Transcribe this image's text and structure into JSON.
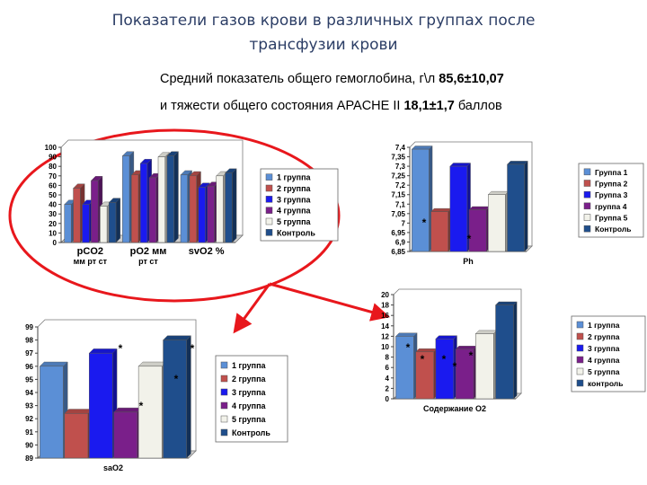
{
  "slide": {
    "title_line1": "Показатели газов крови в различных группах после",
    "title_line2": "трансфузии крови",
    "subtitle1_text": "Средний показатель общего гемоглобина, г\\л ",
    "subtitle1_value": "85,6±10,07",
    "subtitle2_text": "и тяжести общего состояния APACHE II ",
    "subtitle2_value": "18,1±1,7",
    "subtitle2_unit": " баллов",
    "circle_color": "#e8171c",
    "arrow_color": "#e8171c"
  },
  "chart_data": [
    {
      "type": "bar",
      "categories": [
        "pCO2 мм рт ст",
        "pO2 мм рт ст",
        "svO2 %"
      ],
      "category_lines": [
        [
          "pCO2",
          "мм рт ст"
        ],
        [
          "pO2 мм",
          "рт ст"
        ],
        [
          "svO2 %"
        ]
      ],
      "series": [
        {
          "name": "1 группа",
          "color": "#5b8fd6",
          "values": [
            40,
            91,
            71
          ]
        },
        {
          "name": "2 группа",
          "color": "#c0504d",
          "values": [
            57,
            71,
            70
          ]
        },
        {
          "name": "3 группа",
          "color": "#1a1aef",
          "values": [
            40,
            83,
            58
          ]
        },
        {
          "name": "4 группа",
          "color": "#7a1f8a",
          "values": [
            65,
            68,
            59
          ]
        },
        {
          "name": "5 группа",
          "color": "#f2f2ea",
          "values": [
            38,
            90,
            70
          ]
        },
        {
          "name": "Контроль",
          "color": "#1f4e8c",
          "values": [
            42,
            91,
            73
          ]
        }
      ],
      "yticks": [
        "100",
        "90",
        "80",
        "70",
        "60",
        "50",
        "40",
        "30",
        "20",
        "10",
        "0"
      ],
      "ylim": [
        0,
        100
      ],
      "legend": "right",
      "asterisks": []
    },
    {
      "type": "bar",
      "categories": [
        "Ph"
      ],
      "series": [
        {
          "name": "Группа 1",
          "color": "#5b8fd6",
          "values": [
            7.39
          ]
        },
        {
          "name": "Группа 2",
          "color": "#c0504d",
          "values": [
            7.06
          ]
        },
        {
          "name": "Группа 3",
          "color": "#1a1aef",
          "values": [
            7.3
          ]
        },
        {
          "name": "группа 4",
          "color": "#7a1f8a",
          "values": [
            7.07
          ]
        },
        {
          "name": "Группа 5",
          "color": "#f2f2ea",
          "values": [
            7.15
          ]
        },
        {
          "name": "Контроль",
          "color": "#1f4e8c",
          "values": [
            7.31
          ]
        }
      ],
      "yticks": [
        "7,4",
        "7,35",
        "7,3",
        "7,25",
        "7,2",
        "7,15",
        "7,1",
        "7,05",
        "7",
        "6,95",
        "6,9",
        "6,85"
      ],
      "ylim": [
        6.85,
        7.4
      ],
      "legend": "right",
      "asterisks": [
        "*",
        "*",
        "*"
      ]
    },
    {
      "type": "bar",
      "categories": [
        "saO2"
      ],
      "series": [
        {
          "name": "1 группа",
          "color": "#5b8fd6",
          "values": [
            96
          ]
        },
        {
          "name": "2 группа",
          "color": "#c0504d",
          "values": [
            92.4
          ]
        },
        {
          "name": "3 группа",
          "color": "#1a1aef",
          "values": [
            97
          ]
        },
        {
          "name": "4 группа",
          "color": "#7a1f8a",
          "values": [
            92.5
          ]
        },
        {
          "name": "5 группа",
          "color": "#f2f2ea",
          "values": [
            96
          ]
        },
        {
          "name": "Контроль",
          "color": "#1f4e8c",
          "values": [
            98
          ]
        }
      ],
      "yticks": [
        "99",
        "98",
        "97",
        "96",
        "95",
        "94",
        "93",
        "92",
        "91",
        "90",
        "89"
      ],
      "ylim": [
        89,
        99
      ],
      "legend": "right",
      "asterisks": [
        "*",
        "*",
        "*",
        "*"
      ]
    },
    {
      "type": "bar",
      "categories": [
        "Содержание О2"
      ],
      "series": [
        {
          "name": "1 группа",
          "color": "#5b8fd6",
          "values": [
            12
          ]
        },
        {
          "name": "2 группа",
          "color": "#c0504d",
          "values": [
            9
          ]
        },
        {
          "name": "3 группа",
          "color": "#1a1aef",
          "values": [
            11.5
          ]
        },
        {
          "name": "4 группа",
          "color": "#7a1f8a",
          "values": [
            9.5
          ]
        },
        {
          "name": "5 группа",
          "color": "#f2f2ea",
          "values": [
            12.5
          ]
        },
        {
          "name": "контроль",
          "color": "#1f4e8c",
          "values": [
            18
          ]
        }
      ],
      "yticks": [
        "20",
        "18",
        "16",
        "14",
        "12",
        "10",
        "8",
        "6",
        "4",
        "2",
        "0"
      ],
      "ylim": [
        0,
        20
      ],
      "legend": "right",
      "asterisks": [
        "*",
        "*",
        "*",
        "*",
        "*"
      ]
    }
  ]
}
